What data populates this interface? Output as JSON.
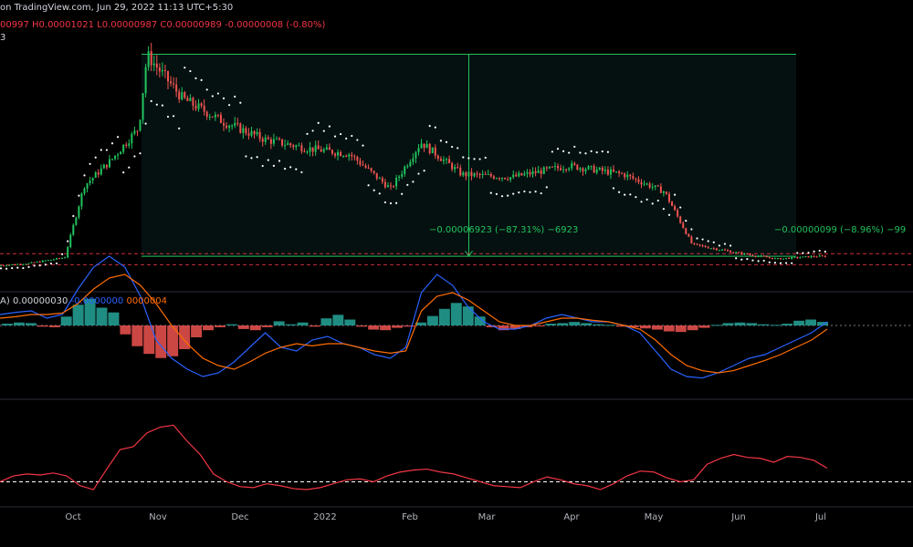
{
  "header": {
    "published": "on TradingView.com, Jun 29, 2022 11:13 UTC+5:30",
    "ohlc_open": "00997",
    "ohlc_high_label": "H",
    "ohlc_high": "0.00001021",
    "ohlc_low_label": "L",
    "ohlc_low": "0.00000987",
    "ohlc_close_label": "C",
    "ohlc_close": "0.00000989",
    "ohlc_change": "-0.00000008 (-0.80%)",
    "sub_label": "3"
  },
  "macd_header": {
    "prefix": "A)",
    "value1": "0.00000030",
    "value2": "-0.0000000",
    "value3": "0000004"
  },
  "measurements": {
    "left": "−0.00006923 (−87.31%) −6923",
    "right": "−0.00000099 (−8.96%) −99"
  },
  "x_axis_labels": [
    "Oct",
    "Nov",
    "Dec",
    "2022",
    "Feb",
    "Mar",
    "Apr",
    "May",
    "Jun",
    "Jul"
  ],
  "colors": {
    "background": "#000000",
    "up": "#26a69a",
    "up_bright": "#22c35e",
    "down": "#ef5350",
    "psar": "#ffffff",
    "macd": "#2962ff",
    "signal": "#ff6d00",
    "rsi": "#f23645",
    "level": "#f23645",
    "measure": "#22c35e",
    "hist_up": "#26a69a",
    "hist_down": "#ef5350"
  },
  "chart_data": [
    {
      "type": "candlestick",
      "series_name": "price",
      "price_levels": [
        1.08e-05,
        7e-06
      ],
      "measure_box": {
        "x_start": "Oct 26",
        "x_end": "Jun 22",
        "top": 7.92e-05,
        "bottom": 9.9e-06
      },
      "close_path": [
        {
          "x": "Sep 1",
          "close": 6.5e-06
        },
        {
          "x": "Sep 15",
          "close": 7.5e-06
        },
        {
          "x": "Sep 28",
          "close": 9.5e-06
        },
        {
          "x": "Oct 5",
          "close": 3.4e-05
        },
        {
          "x": "Oct 15",
          "close": 4.3e-05
        },
        {
          "x": "Oct 25",
          "close": 5.4e-05
        },
        {
          "x": "Oct 28",
          "close": 7.9e-05
        },
        {
          "x": "Nov 10",
          "close": 6.4e-05
        },
        {
          "x": "Nov 25",
          "close": 5.6e-05
        },
        {
          "x": "Dec 10",
          "close": 5e-05
        },
        {
          "x": "Dec 25",
          "close": 4.7e-05
        },
        {
          "x": "Jan 10",
          "close": 4.5e-05
        },
        {
          "x": "Jan 25",
          "close": 3.3e-05
        },
        {
          "x": "Feb 5",
          "close": 4.9e-05
        },
        {
          "x": "Feb 20",
          "close": 3.8e-05
        },
        {
          "x": "Mar 10",
          "close": 3.7e-05
        },
        {
          "x": "Mar 31",
          "close": 4.1e-05
        },
        {
          "x": "Apr 20",
          "close": 3.8e-05
        },
        {
          "x": "May 5",
          "close": 3.2e-05
        },
        {
          "x": "May 15",
          "close": 1.4e-05
        },
        {
          "x": "Jun 1",
          "close": 1.1e-05
        },
        {
          "x": "Jun 15",
          "close": 9e-06
        },
        {
          "x": "Jun 29",
          "close": 9.9e-06
        }
      ]
    },
    {
      "type": "bar",
      "series_name": "MACD histogram",
      "values": [
        0.3,
        0.5,
        0.4,
        -0.2,
        -0.3,
        1.5,
        3.5,
        4.5,
        3.0,
        2.2,
        -1.5,
        -3.5,
        -4.8,
        -5.5,
        -5.2,
        -4.0,
        -2.0,
        -0.8,
        -0.3,
        0.2,
        -0.6,
        -0.8,
        -0.3,
        0.7,
        0.2,
        0.5,
        -0.2,
        1.2,
        1.8,
        1.0,
        -0.2,
        -0.7,
        -0.8,
        -0.4,
        -0.2,
        0.5,
        1.6,
        2.8,
        3.8,
        3.2,
        1.5,
        -0.3,
        -0.8,
        -0.6,
        -0.3,
        -0.1,
        0.3,
        0.4,
        0.6,
        0.4,
        0.2,
        0.1,
        -0.2,
        -0.3,
        -0.5,
        -0.7,
        -1.0,
        -1.1,
        -0.8,
        -0.4,
        0.1,
        0.4,
        0.5,
        0.4,
        0.2,
        0.1,
        0.3,
        0.8,
        1.0,
        0.6
      ]
    },
    {
      "type": "line",
      "series_name": "MACD lines",
      "macd": [
        1.5,
        1.8,
        2.0,
        1.0,
        1.5,
        5.0,
        8.0,
        9.5,
        8.0,
        4.0,
        -2.0,
        -4.5,
        -6.0,
        -7.0,
        -6.5,
        -5.0,
        -3.0,
        -1.0,
        -3.0,
        -3.5,
        -2.0,
        -1.5,
        -2.5,
        -3.0,
        -4.0,
        -4.5,
        -3.0,
        4.5,
        7.0,
        5.5,
        2.5,
        0.5,
        -0.5,
        -0.5,
        0.0,
        1.0,
        1.5,
        1.0,
        0.5,
        0.5,
        0.0,
        -1.0,
        -3.5,
        -6.0,
        -7.0,
        -7.2,
        -6.5,
        -5.5,
        -4.5,
        -4.0,
        -3.0,
        -2.0,
        -1.0,
        0.5
      ],
      "signal": [
        1.0,
        1.2,
        1.5,
        1.5,
        1.7,
        3.0,
        5.0,
        6.5,
        7.0,
        5.5,
        3.0,
        0.0,
        -2.5,
        -4.5,
        -5.5,
        -6.0,
        -5.0,
        -3.8,
        -3.0,
        -2.5,
        -2.8,
        -2.5,
        -2.5,
        -3.0,
        -3.5,
        -3.8,
        -3.5,
        2.0,
        4.0,
        4.5,
        3.5,
        2.0,
        0.5,
        0.0,
        0.0,
        0.5,
        1.0,
        1.0,
        0.7,
        0.5,
        0.0,
        -0.5,
        -2.0,
        -4.0,
        -5.5,
        -6.2,
        -6.5,
        -6.2,
        -5.5,
        -4.8,
        -4.0,
        -3.0,
        -2.0,
        -0.5
      ]
    },
    {
      "type": "line",
      "series_name": "oscillator",
      "values": [
        22,
        28,
        30,
        29,
        31,
        28,
        18,
        14,
        35,
        55,
        58,
        72,
        78,
        80,
        64,
        50,
        30,
        22,
        17,
        16,
        20,
        18,
        15,
        14,
        16,
        20,
        24,
        25,
        22,
        28,
        32,
        34,
        35,
        32,
        30,
        26,
        22,
        18,
        17,
        16,
        22,
        27,
        24,
        20,
        18,
        14,
        20,
        28,
        33,
        32,
        26,
        22,
        24,
        40,
        46,
        50,
        47,
        46,
        42,
        48,
        47,
        44,
        36
      ],
      "baseline": 22
    }
  ]
}
